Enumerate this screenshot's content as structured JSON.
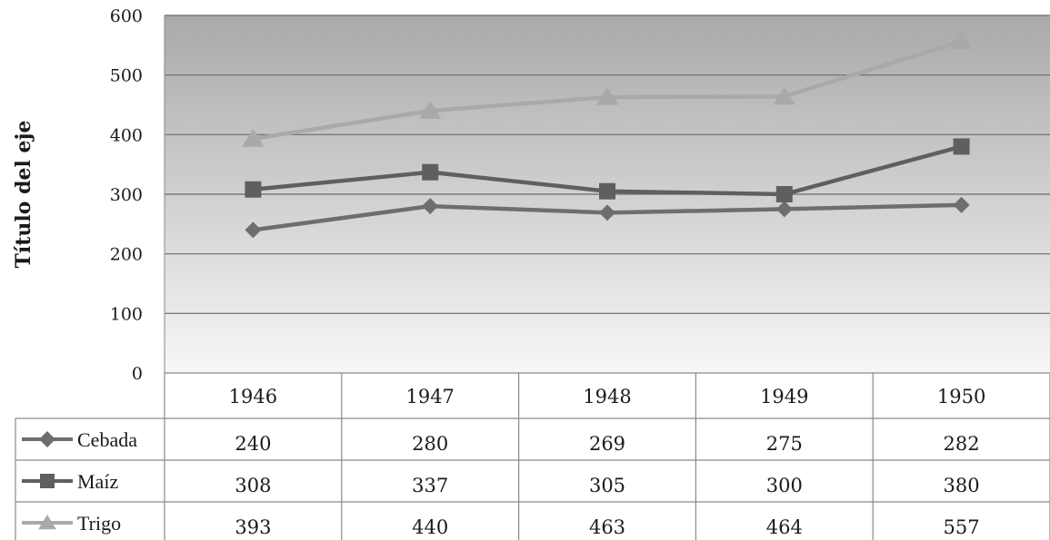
{
  "chart_data": {
    "type": "line",
    "ylabel": "Título del eje",
    "xlabel": "",
    "ylim": [
      0,
      600
    ],
    "yticks": [
      "0",
      "100",
      "200",
      "300",
      "400",
      "500",
      "600"
    ],
    "categories": [
      "1946",
      "1947",
      "1948",
      "1949",
      "1950"
    ],
    "grid": true,
    "legend": "data-table-left",
    "series": [
      {
        "name": "Cebada",
        "marker": "diamond",
        "color": "#6e6e6e",
        "values": [
          240,
          280,
          269,
          275,
          282
        ]
      },
      {
        "name": "Maíz",
        "marker": "square",
        "color": "#5f5f5f",
        "values": [
          308,
          337,
          305,
          300,
          380
        ]
      },
      {
        "name": "Trigo",
        "marker": "triangle",
        "color": "#a9a9a9",
        "values": [
          393,
          440,
          463,
          464,
          557
        ]
      }
    ]
  }
}
